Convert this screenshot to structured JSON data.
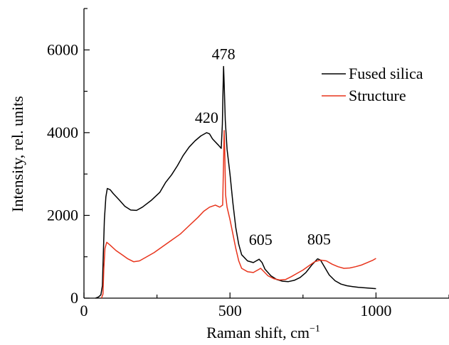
{
  "chart_data": {
    "type": "line",
    "xlabel_main": "Raman shift, cm",
    "xlabel_sup": "−1",
    "ylabel": "Intensity, rel. units",
    "xlim": [
      0,
      1250
    ],
    "ylim": [
      0,
      7000
    ],
    "xticks": [
      0,
      500,
      1000
    ],
    "yticks": [
      0,
      2000,
      4000,
      6000
    ],
    "grid": false,
    "legend_position": "top-right",
    "series": [
      {
        "name": "Fused silica",
        "color": "#000000",
        "points": [
          [
            40,
            0
          ],
          [
            50,
            30
          ],
          [
            58,
            80
          ],
          [
            63,
            300
          ],
          [
            66,
            1000
          ],
          [
            70,
            1900
          ],
          [
            75,
            2450
          ],
          [
            80,
            2650
          ],
          [
            90,
            2620
          ],
          [
            100,
            2530
          ],
          [
            120,
            2380
          ],
          [
            140,
            2220
          ],
          [
            160,
            2130
          ],
          [
            180,
            2120
          ],
          [
            200,
            2200
          ],
          [
            230,
            2360
          ],
          [
            260,
            2560
          ],
          [
            280,
            2800
          ],
          [
            300,
            2980
          ],
          [
            320,
            3200
          ],
          [
            340,
            3450
          ],
          [
            360,
            3650
          ],
          [
            380,
            3800
          ],
          [
            400,
            3920
          ],
          [
            420,
            4000
          ],
          [
            430,
            3970
          ],
          [
            440,
            3850
          ],
          [
            460,
            3700
          ],
          [
            470,
            3620
          ],
          [
            474,
            4200
          ],
          [
            476,
            5000
          ],
          [
            478,
            5600
          ],
          [
            480,
            5200
          ],
          [
            484,
            4300
          ],
          [
            490,
            3600
          ],
          [
            500,
            3000
          ],
          [
            510,
            2300
          ],
          [
            520,
            1700
          ],
          [
            530,
            1300
          ],
          [
            540,
            1050
          ],
          [
            560,
            900
          ],
          [
            580,
            860
          ],
          [
            590,
            900
          ],
          [
            600,
            940
          ],
          [
            610,
            860
          ],
          [
            620,
            700
          ],
          [
            640,
            540
          ],
          [
            660,
            450
          ],
          [
            680,
            410
          ],
          [
            700,
            400
          ],
          [
            720,
            430
          ],
          [
            740,
            500
          ],
          [
            760,
            620
          ],
          [
            780,
            800
          ],
          [
            800,
            950
          ],
          [
            810,
            920
          ],
          [
            820,
            800
          ],
          [
            830,
            680
          ],
          [
            840,
            560
          ],
          [
            860,
            420
          ],
          [
            880,
            340
          ],
          [
            900,
            300
          ],
          [
            920,
            280
          ],
          [
            940,
            260
          ],
          [
            960,
            250
          ],
          [
            980,
            240
          ],
          [
            1000,
            230
          ]
        ]
      },
      {
        "name": "Structure",
        "color": "#e8341c",
        "points": [
          [
            60,
            0
          ],
          [
            65,
            100
          ],
          [
            68,
            700
          ],
          [
            72,
            1200
          ],
          [
            78,
            1350
          ],
          [
            90,
            1280
          ],
          [
            110,
            1150
          ],
          [
            130,
            1050
          ],
          [
            150,
            950
          ],
          [
            170,
            880
          ],
          [
            190,
            900
          ],
          [
            210,
            980
          ],
          [
            240,
            1100
          ],
          [
            270,
            1250
          ],
          [
            300,
            1400
          ],
          [
            330,
            1550
          ],
          [
            360,
            1750
          ],
          [
            390,
            1950
          ],
          [
            410,
            2100
          ],
          [
            430,
            2200
          ],
          [
            450,
            2250
          ],
          [
            465,
            2200
          ],
          [
            475,
            2250
          ],
          [
            478,
            3300
          ],
          [
            480,
            4050
          ],
          [
            482,
            3600
          ],
          [
            485,
            2500
          ],
          [
            490,
            2200
          ],
          [
            500,
            1900
          ],
          [
            510,
            1550
          ],
          [
            520,
            1200
          ],
          [
            530,
            900
          ],
          [
            540,
            720
          ],
          [
            560,
            640
          ],
          [
            580,
            620
          ],
          [
            595,
            680
          ],
          [
            605,
            720
          ],
          [
            615,
            650
          ],
          [
            630,
            540
          ],
          [
            650,
            470
          ],
          [
            670,
            440
          ],
          [
            690,
            450
          ],
          [
            710,
            520
          ],
          [
            730,
            600
          ],
          [
            750,
            680
          ],
          [
            770,
            780
          ],
          [
            790,
            880
          ],
          [
            810,
            920
          ],
          [
            830,
            900
          ],
          [
            850,
            820
          ],
          [
            870,
            760
          ],
          [
            890,
            720
          ],
          [
            910,
            730
          ],
          [
            930,
            760
          ],
          [
            950,
            800
          ],
          [
            970,
            860
          ],
          [
            990,
            920
          ],
          [
            1000,
            960
          ]
        ]
      }
    ],
    "annotations": [
      {
        "text": "420",
        "x": 420,
        "y": 4000
      },
      {
        "text": "478",
        "x": 478,
        "y": 5600
      },
      {
        "text": "605",
        "x": 605,
        "y": 940
      },
      {
        "text": "805",
        "x": 805,
        "y": 950
      }
    ]
  }
}
